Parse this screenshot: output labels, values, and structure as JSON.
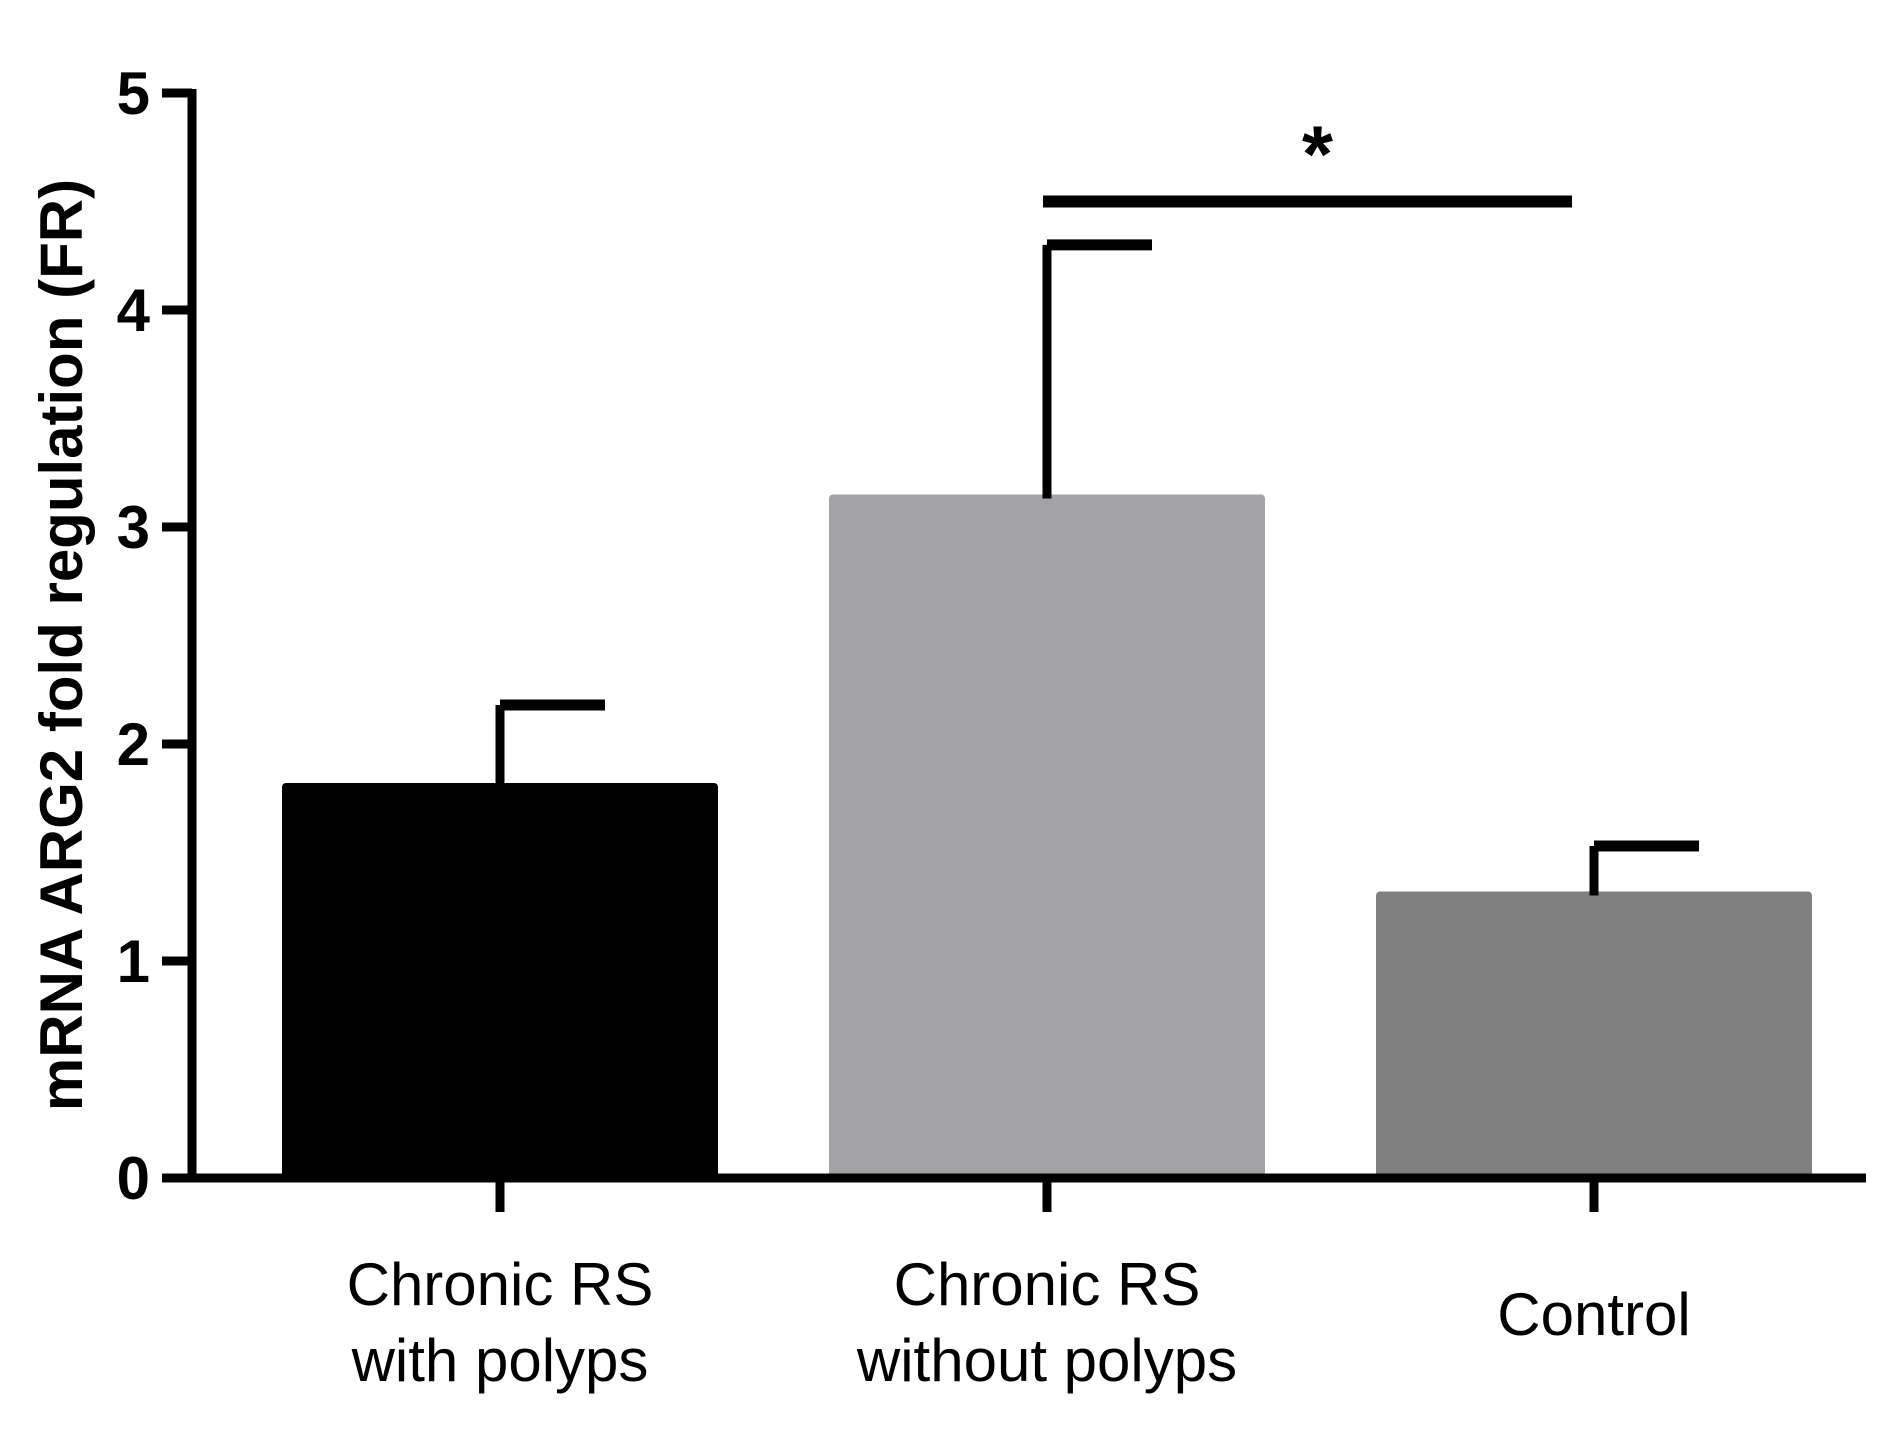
{
  "chart_data": {
    "type": "bar",
    "title": "",
    "xlabel": "",
    "ylabel": "mRNA ARG2 fold regulation (FR)",
    "ylim": [
      0,
      5
    ],
    "yticks": [
      "0",
      "1",
      "2",
      "3",
      "4",
      "5"
    ],
    "categories": [
      [
        "Chronic RS",
        "with polyps"
      ],
      [
        "Chronic RS",
        "without polyps"
      ],
      [
        "Control"
      ]
    ],
    "values": [
      1.82,
      3.15,
      1.32
    ],
    "errors": [
      0.36,
      1.15,
      0.21
    ],
    "colors": [
      "#000000",
      "#a3a2a7",
      "#808080"
    ],
    "significance": {
      "from": 1,
      "to": 2,
      "level": 4.5,
      "label": "*"
    }
  }
}
